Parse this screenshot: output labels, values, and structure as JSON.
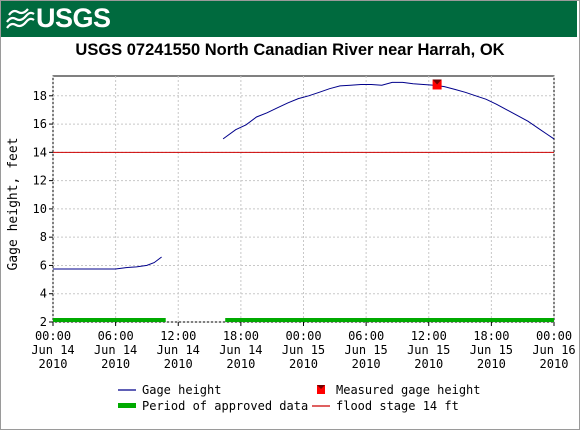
{
  "header": {
    "logo_text": "USGS",
    "banner_color": "#006a3e"
  },
  "chart_data": {
    "type": "line",
    "title": "USGS 07241550 North Canadian River near Harrah, OK",
    "ylabel": "Gage height, feet",
    "xlabel": "",
    "ylim": [
      2,
      19.4
    ],
    "yticks": [
      2,
      4,
      6,
      8,
      10,
      12,
      14,
      16,
      18
    ],
    "grid": true,
    "x_ticks": [
      {
        "hours": 0,
        "time": "00:00",
        "date": "Jun 14",
        "year": "2010"
      },
      {
        "hours": 6,
        "time": "06:00",
        "date": "Jun 14",
        "year": "2010"
      },
      {
        "hours": 12,
        "time": "12:00",
        "date": "Jun 14",
        "year": "2010"
      },
      {
        "hours": 18,
        "time": "18:00",
        "date": "Jun 14",
        "year": "2010"
      },
      {
        "hours": 24,
        "time": "00:00",
        "date": "Jun 15",
        "year": "2010"
      },
      {
        "hours": 30,
        "time": "06:00",
        "date": "Jun 15",
        "year": "2010"
      },
      {
        "hours": 36,
        "time": "12:00",
        "date": "Jun 15",
        "year": "2010"
      },
      {
        "hours": 42,
        "time": "18:00",
        "date": "Jun 15",
        "year": "2010"
      },
      {
        "hours": 48,
        "time": "00:00",
        "date": "Jun 16",
        "year": "2010"
      }
    ],
    "xlim_hours": [
      0,
      48
    ],
    "series": [
      {
        "name": "Gage height",
        "color": "#00008b",
        "segments": [
          [
            [
              0,
              5.75
            ],
            [
              2,
              5.75
            ],
            [
              4,
              5.75
            ],
            [
              6,
              5.75
            ],
            [
              7,
              5.85
            ],
            [
              8,
              5.9
            ],
            [
              9,
              6.0
            ],
            [
              9.7,
              6.2
            ],
            [
              10.4,
              6.6
            ]
          ],
          [
            [
              16.3,
              14.95
            ],
            [
              17.5,
              15.6
            ],
            [
              18.5,
              15.95
            ],
            [
              19.5,
              16.5
            ],
            [
              20.5,
              16.8
            ],
            [
              21.5,
              17.15
            ],
            [
              22.5,
              17.5
            ],
            [
              23.5,
              17.8
            ],
            [
              24.5,
              18.0
            ],
            [
              25.5,
              18.25
            ],
            [
              26.5,
              18.5
            ],
            [
              27.5,
              18.7
            ],
            [
              28.5,
              18.75
            ],
            [
              29.5,
              18.8
            ],
            [
              30.5,
              18.8
            ],
            [
              31.5,
              18.75
            ],
            [
              32.5,
              18.95
            ],
            [
              33.5,
              18.95
            ],
            [
              34.5,
              18.85
            ],
            [
              35.5,
              18.8
            ],
            [
              36.5,
              18.75
            ],
            [
              37.5,
              18.65
            ],
            [
              38.5,
              18.45
            ],
            [
              39.5,
              18.25
            ],
            [
              40.5,
              18.0
            ],
            [
              41.5,
              17.75
            ],
            [
              42.5,
              17.4
            ],
            [
              43.5,
              17.0
            ],
            [
              44.5,
              16.6
            ],
            [
              45.5,
              16.2
            ],
            [
              46.5,
              15.7
            ],
            [
              47.3,
              15.3
            ],
            [
              48,
              14.95
            ]
          ]
        ]
      }
    ],
    "measured": [
      {
        "name": "Measured gage height",
        "hours": 36.8,
        "value": 18.8,
        "color": "#ff0000"
      }
    ],
    "flood_stage": {
      "name": "flood stage 14 ft",
      "value": 14,
      "color": "#cc0000"
    },
    "approved_periods": {
      "name": "Period of approved data",
      "color": "#00aa00",
      "ranges": [
        [
          0,
          10.8
        ],
        [
          16.5,
          48
        ]
      ]
    },
    "legend": {
      "placement": "bottom",
      "items": [
        {
          "label": "Gage height",
          "kind": "line",
          "color": "#00008b"
        },
        {
          "label": "Measured gage height",
          "kind": "marker",
          "color": "#ff0000"
        },
        {
          "label": "Period of approved data",
          "kind": "bar",
          "color": "#00aa00"
        },
        {
          "label": "flood stage 14 ft",
          "kind": "line",
          "color": "#cc0000"
        }
      ]
    }
  }
}
